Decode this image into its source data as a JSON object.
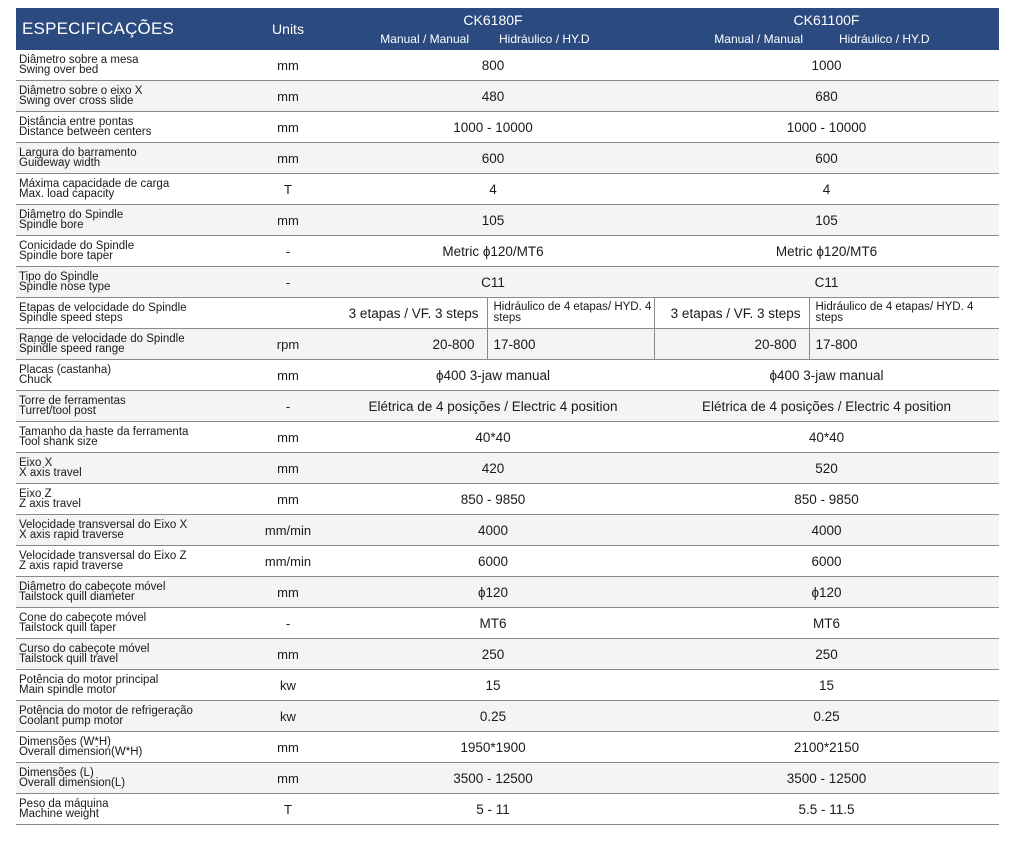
{
  "header": {
    "title": "ESPECIFICAÇÕES",
    "units": "Units",
    "model_a": "CK6180F",
    "model_b": "CK61100F",
    "sub_manual": "Manual / Manual",
    "sub_hyd": "Hidráulico / HY.D"
  },
  "rows": [
    {
      "pt": "Diâmetro sobre a mesa",
      "en": "Swing over bed",
      "unit": "mm",
      "a": "800",
      "b": "1000"
    },
    {
      "pt": "Diâmetro sobre o eixo X",
      "en": "Swing over cross slide",
      "unit": "mm",
      "a": "480",
      "b": "680"
    },
    {
      "pt": "Distância entre pontas",
      "en": "Distance between centers",
      "unit": "mm",
      "a": "1000 - 10000",
      "b": "1000 - 10000"
    },
    {
      "pt": "Largura do barramento",
      "en": "Guideway width",
      "unit": "mm",
      "a": "600",
      "b": "600"
    },
    {
      "pt": "Máxima capacidade de carga",
      "en": "Max. load capacity",
      "unit": "T",
      "a": "4",
      "b": "4"
    },
    {
      "pt": "Diâmetro do Spindle",
      "en": "Spindle bore",
      "unit": "mm",
      "a": "105",
      "b": "105"
    },
    {
      "pt": "Conicidade do Spindle",
      "en": "Spindle bore taper",
      "unit": "-",
      "a": "Metric ϕ120/MT6",
      "b": "Metric ϕ120/MT6"
    },
    {
      "pt": "Tipo do Spindle",
      "en": "Spindle nose type",
      "unit": "-",
      "a": "C11",
      "b": "C11"
    },
    {
      "pt": "Etapas de velocidade do Spindle",
      "en": "Spindle speed steps",
      "unit": "",
      "a1": "3 etapas / VF. 3 steps",
      "a2_l1": "Hidráulico de 4 etapas",
      "a2_l2": "/ HYD. 4 steps",
      "b1": "3 etapas / VF. 3 steps",
      "b2_l1": "Hidráulico de 4 etapas",
      "b2_l2": "/ HYD. 4 steps"
    },
    {
      "pt": "Range de velocidade do Spindle",
      "en": "Spindle speed range",
      "unit": "rpm",
      "a1": "20-800",
      "a2": "17-800",
      "b1": "20-800",
      "b2": "17-800"
    },
    {
      "pt": "Placas (castanha)",
      "en": "Chuck",
      "unit": "mm",
      "a": "ϕ400 3-jaw manual",
      "b": "ϕ400 3-jaw manual"
    },
    {
      "pt": "Torre de ferramentas",
      "en": "Turret/tool post",
      "unit": "-",
      "a": "Elétrica de 4 posições / Electric 4 position",
      "b": "Elétrica de 4 posições / Electric 4 position"
    },
    {
      "pt": "Tamanho da haste da ferramenta",
      "en": "Tool shank size",
      "unit": "mm",
      "a": "40*40",
      "b": "40*40"
    },
    {
      "pt": "Eixo X",
      "en": "X axis travel",
      "unit": "mm",
      "a": "420",
      "b": "520"
    },
    {
      "pt": "Eixo Z",
      "en": "Z axis travel",
      "unit": "mm",
      "a": "850 - 9850",
      "b": "850 - 9850"
    },
    {
      "pt": "Velocidade transversal do Eixo X",
      "en": "X axis rapid traverse",
      "unit": "mm/min",
      "a": "4000",
      "b": "4000"
    },
    {
      "pt": "Velocidade transversal do Eixo Z",
      "en": "Z axis rapid traverse",
      "unit": "mm/min",
      "a": "6000",
      "b": "6000"
    },
    {
      "pt": "Diâmetro do cabeçote móvel",
      "en": "Tailstock quill diameter",
      "unit": "mm",
      "a": "ϕ120",
      "b": "ϕ120"
    },
    {
      "pt": "Cone do cabeçote móvel",
      "en": "Tailstock quill taper",
      "unit": "-",
      "a": "MT6",
      "b": "MT6"
    },
    {
      "pt": "Curso do cabeçote móvel",
      "en": "Tailstock quill travel",
      "unit": "mm",
      "a": "250",
      "b": "250"
    },
    {
      "pt": "Potência do motor principal",
      "en": "Main spindle motor",
      "unit": "kw",
      "a": "15",
      "b": "15"
    },
    {
      "pt": "Potência do motor de refrigeração",
      "en": "Coolant pump motor",
      "unit": "kw",
      "a": "0.25",
      "b": "0.25"
    },
    {
      "pt": "Dimensões (W*H)",
      "en": "Overall dimension(W*H)",
      "unit": "mm",
      "a": "1950*1900",
      "b": "2100*2150"
    },
    {
      "pt": "Dimensões (L)",
      "en": "Overall dimension(L)",
      "unit": "mm",
      "a": "3500 - 12500",
      "b": "3500 - 12500"
    },
    {
      "pt": "Peso da máquina",
      "en": "Machine weight",
      "unit": "T",
      "a": "5 - 11",
      "b": "5.5 - 11.5"
    }
  ]
}
